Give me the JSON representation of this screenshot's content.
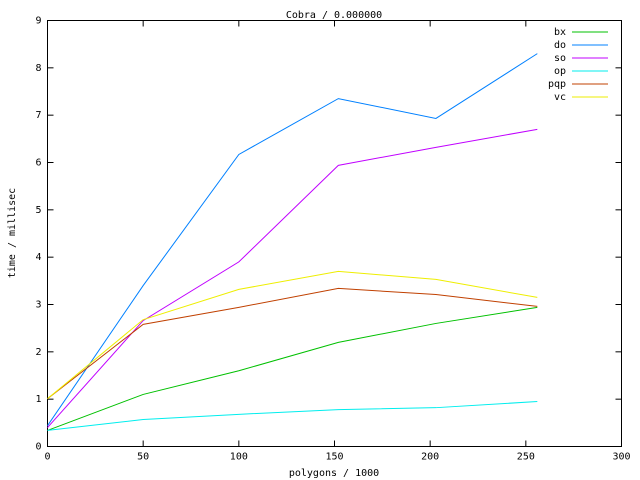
{
  "chart_data": {
    "type": "line",
    "title": "Cobra / 0.000000",
    "x_label": "polygons / 1000",
    "y_label": "time / millisec",
    "x": [
      0,
      50,
      100,
      152,
      203,
      256
    ],
    "xlim": [
      0,
      300
    ],
    "xticks": [
      0,
      50,
      100,
      150,
      200,
      250,
      300
    ],
    "ylim": [
      0,
      9
    ],
    "yticks": [
      0,
      1,
      2,
      3,
      4,
      5,
      6,
      7,
      8,
      9
    ],
    "grid": false,
    "legend": "top-right",
    "series": [
      {
        "name": "bx",
        "color": "#00c000",
        "values": [
          0.34,
          1.1,
          1.6,
          2.2,
          2.6,
          2.94
        ]
      },
      {
        "name": "do",
        "color": "#0080ff",
        "values": [
          0.44,
          3.4,
          6.17,
          7.35,
          6.93,
          8.3
        ]
      },
      {
        "name": "so",
        "color": "#c000ff",
        "values": [
          0.4,
          2.66,
          3.9,
          5.94,
          6.32,
          6.7
        ]
      },
      {
        "name": "op",
        "color": "#00eeee",
        "values": [
          0.34,
          0.57,
          0.68,
          0.78,
          0.82,
          0.95
        ]
      },
      {
        "name": "pqp",
        "color": "#c04000",
        "values": [
          1.01,
          2.58,
          2.94,
          3.34,
          3.21,
          2.96
        ]
      },
      {
        "name": "vc",
        "color": "#eeee00",
        "values": [
          1.01,
          2.68,
          3.32,
          3.7,
          3.53,
          3.15
        ]
      }
    ]
  }
}
